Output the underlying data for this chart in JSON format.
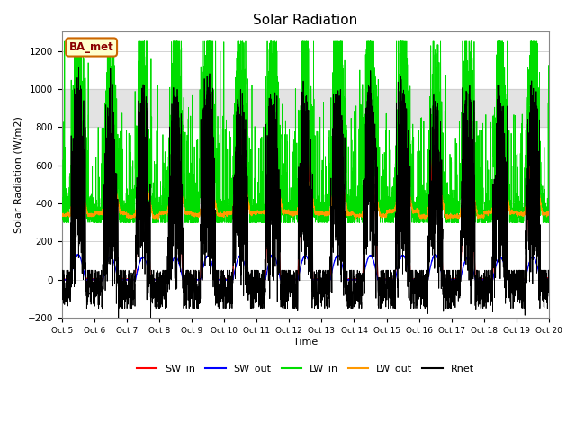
{
  "title": "Solar Radiation",
  "ylabel": "Solar Radiation (W/m2)",
  "xlabel": "Time",
  "ylim": [
    -200,
    1300
  ],
  "xlim": [
    0,
    15
  ],
  "background_shading": [
    800,
    1000
  ],
  "tick_labels": [
    "Oct 5",
    "Oct 6",
    "Oct 7",
    "Oct 8",
    "Oct 9",
    "Oct 10",
    "Oct 11",
    "Oct 12",
    "Oct 13",
    "Oct 14",
    "Oct 15",
    "Oct 16",
    "Oct 17",
    "Oct 18",
    "Oct 19",
    "Oct 20"
  ],
  "series_colors": {
    "SW_in": "#ff0000",
    "SW_out": "#0000ff",
    "LW_in": "#00dd00",
    "LW_out": "#ff9900",
    "Rnet": "#000000"
  },
  "legend_label": "BA_met",
  "legend_bg": "#ffffcc",
  "legend_border": "#cc6600"
}
